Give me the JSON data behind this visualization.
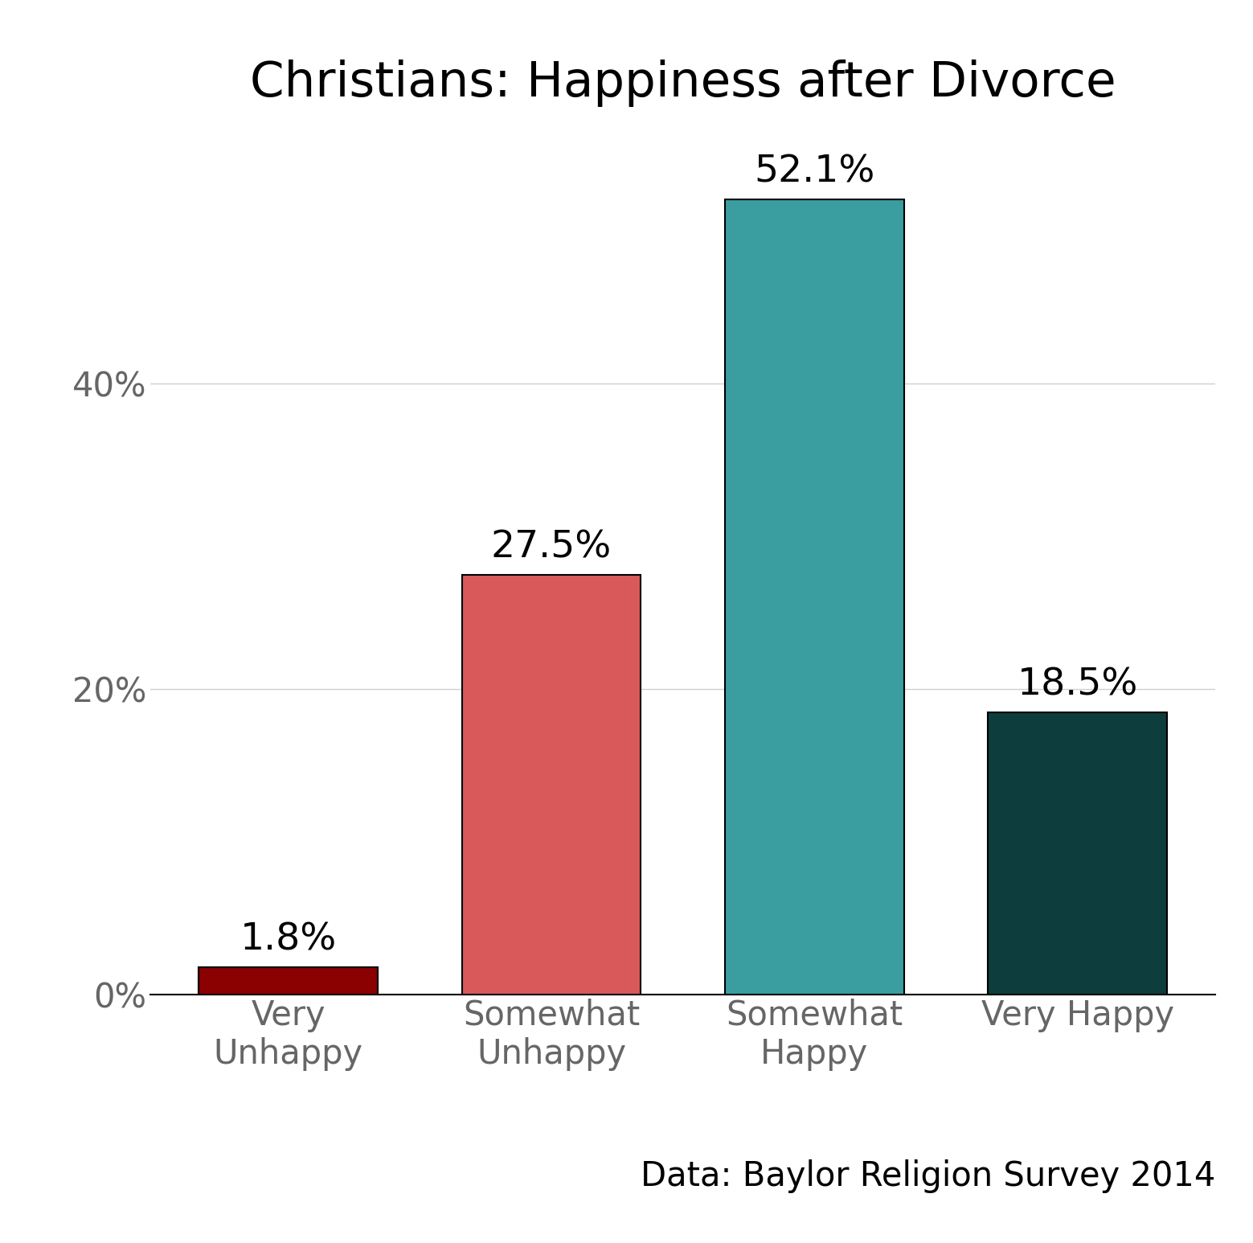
{
  "title": "Christians: Happiness after Divorce",
  "categories": [
    "Very\nUnhappy",
    "Somewhat\nUnhappy",
    "Somewhat\nHappy",
    "Very Happy"
  ],
  "values": [
    1.8,
    27.5,
    52.1,
    18.5
  ],
  "labels": [
    "1.8%",
    "27.5%",
    "52.1%",
    "18.5%"
  ],
  "bar_colors": [
    "#8B0000",
    "#D9595A",
    "#3A9DA0",
    "#0D3D3D"
  ],
  "background_color": "#ffffff",
  "ylim": [
    0,
    57
  ],
  "yticks": [
    0,
    20,
    40
  ],
  "ytick_labels": [
    "0%",
    "20%",
    "40%"
  ],
  "title_fontsize": 44,
  "label_fontsize": 34,
  "tick_fontsize": 30,
  "source_text": "Data: Baylor Religion Survey 2014",
  "source_fontsize": 30,
  "bar_width": 0.68,
  "grid_color": "#d0d0d0",
  "tick_label_color": "#666666",
  "bar_edge_color": "#000000"
}
